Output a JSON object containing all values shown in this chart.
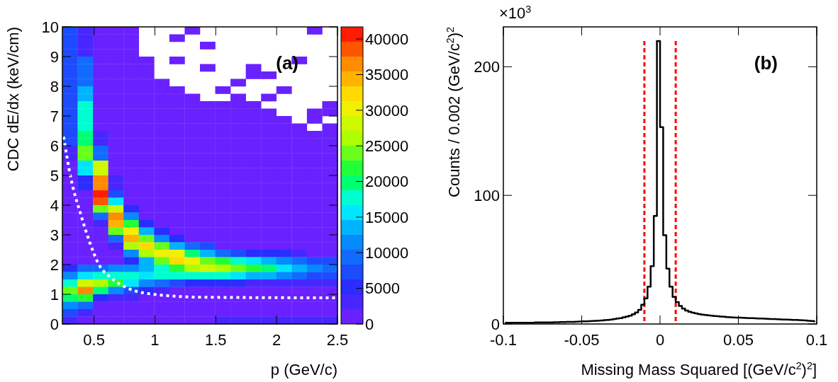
{
  "chart_data": [
    {
      "type": "heatmap",
      "xlabel": "p (GeV/c)",
      "ylabel": "CDC dE/dx (keV/cm)",
      "annotations": [
        "(a)"
      ],
      "xlim": [
        0.24,
        2.5
      ],
      "xticks": [
        0.5,
        1,
        1.5,
        2,
        2.5
      ],
      "ylim": [
        0,
        10
      ],
      "yticks": [
        0,
        1,
        2,
        3,
        4,
        5,
        6,
        7,
        8,
        9,
        10
      ],
      "clim": [
        0,
        41700
      ],
      "cticks": [
        0,
        5000,
        10000,
        15000,
        20000,
        25000,
        30000,
        35000,
        40000
      ],
      "cells": [
        [
          7000,
          4000,
          1000,
          1000,
          1000,
          null,
          null,
          null,
          1000,
          null,
          null,
          null,
          null,
          null,
          null,
          null,
          1000,
          null
        ],
        [
          7000,
          4000,
          1000,
          1000,
          1000,
          null,
          null,
          1000,
          null,
          null,
          null,
          null,
          null,
          null,
          null,
          null,
          null,
          null
        ],
        [
          7000,
          4000,
          1000,
          1000,
          1000,
          null,
          null,
          null,
          null,
          1000,
          null,
          null,
          null,
          null,
          null,
          null,
          null,
          null
        ],
        [
          7000,
          4000,
          1000,
          1000,
          1000,
          null,
          null,
          null,
          null,
          null,
          null,
          null,
          null,
          null,
          null,
          null,
          null,
          null
        ],
        [
          7000,
          9000,
          1000,
          1000,
          1000,
          1000,
          null,
          1000,
          null,
          null,
          null,
          null,
          null,
          null,
          null,
          1000,
          null,
          null
        ],
        [
          7000,
          9000,
          1000,
          1000,
          1000,
          1000,
          null,
          null,
          null,
          1000,
          null,
          null,
          1000,
          null,
          null,
          null,
          null,
          null
        ],
        [
          7000,
          9000,
          1000,
          1000,
          1000,
          1000,
          null,
          null,
          null,
          null,
          null,
          null,
          1000,
          1000,
          null,
          null,
          null,
          null
        ],
        [
          7000,
          9000,
          1000,
          1000,
          1000,
          1000,
          1000,
          null,
          null,
          null,
          null,
          1000,
          null,
          null,
          null,
          null,
          null,
          null
        ],
        [
          7000,
          13000,
          1000,
          1000,
          1000,
          1000,
          1000,
          1000,
          null,
          null,
          1000,
          null,
          null,
          null,
          1000,
          null,
          null,
          null
        ],
        [
          7000,
          13000,
          1000,
          1000,
          1000,
          1000,
          1000,
          1000,
          1000,
          null,
          null,
          1000,
          null,
          1000,
          null,
          null,
          null,
          null
        ],
        [
          7000,
          17000,
          1000,
          1000,
          1000,
          1000,
          1000,
          1000,
          1000,
          1000,
          1000,
          1000,
          1000,
          null,
          null,
          null,
          null,
          1000
        ],
        [
          7000,
          17000,
          1000,
          1000,
          1000,
          1000,
          1000,
          1000,
          1000,
          1000,
          1000,
          1000,
          1000,
          1000,
          null,
          null,
          1000,
          1000
        ],
        [
          7000,
          17000,
          1000,
          1000,
          1000,
          1000,
          1000,
          1000,
          1000,
          1000,
          1000,
          1000,
          1000,
          1000,
          1000,
          null,
          1000,
          null
        ],
        [
          7000,
          17000,
          1000,
          1000,
          1000,
          1000,
          1000,
          1000,
          1000,
          1000,
          1000,
          1000,
          1000,
          1000,
          1000,
          1000,
          null,
          1000
        ],
        [
          7000,
          20000,
          3000,
          1000,
          1000,
          1000,
          1000,
          1000,
          1000,
          1000,
          1000,
          1000,
          1000,
          1000,
          1000,
          1000,
          1000,
          1000
        ],
        [
          7000,
          20000,
          3000,
          1000,
          1000,
          1000,
          1000,
          1000,
          1000,
          1000,
          1000,
          1000,
          1000,
          1000,
          1000,
          1000,
          1000,
          1000
        ],
        [
          4000,
          25000,
          10000,
          1000,
          1000,
          1000,
          1000,
          1000,
          1000,
          1000,
          1000,
          1000,
          1000,
          1000,
          1000,
          1000,
          1000,
          1000
        ],
        [
          4000,
          25000,
          10000,
          1000,
          1000,
          1000,
          1000,
          1000,
          1000,
          1000,
          1000,
          1000,
          1000,
          1000,
          1000,
          1000,
          1000,
          1000
        ],
        [
          1500,
          15000,
          28000,
          1000,
          1000,
          1000,
          1000,
          1000,
          1000,
          1000,
          1000,
          1000,
          1000,
          1000,
          1000,
          1000,
          1000,
          1000
        ],
        [
          1500,
          15000,
          28000,
          1000,
          1000,
          1000,
          1000,
          1000,
          1000,
          1000,
          1000,
          1000,
          1000,
          1000,
          1000,
          1000,
          1000,
          1000
        ],
        [
          1500,
          5000,
          37000,
          3000,
          1000,
          1000,
          1000,
          1000,
          1000,
          1000,
          1000,
          1000,
          1000,
          1000,
          1000,
          1000,
          1000,
          1000
        ],
        [
          1500,
          5000,
          37000,
          3000,
          1000,
          1000,
          1000,
          1000,
          1000,
          1000,
          1000,
          1000,
          1000,
          1000,
          1000,
          1000,
          1000,
          1000
        ],
        [
          1500,
          1000,
          40000,
          8000,
          1000,
          1000,
          1000,
          1000,
          1000,
          1000,
          1000,
          1000,
          1000,
          1000,
          1000,
          1000,
          1000,
          1000
        ],
        [
          1500,
          1000,
          38000,
          15000,
          1000,
          1000,
          1000,
          1000,
          1000,
          1000,
          1000,
          1000,
          1000,
          1000,
          1000,
          1000,
          1000,
          1000
        ],
        [
          1500,
          1000,
          24000,
          28000,
          5000,
          1000,
          1000,
          1000,
          1000,
          1000,
          1000,
          1000,
          1000,
          1000,
          1000,
          1000,
          1000,
          1000
        ],
        [
          1500,
          1000,
          10000,
          36000,
          12000,
          1000,
          1000,
          1000,
          1000,
          1000,
          1000,
          1000,
          1000,
          1000,
          1000,
          1000,
          1000,
          1000
        ],
        [
          1500,
          1000,
          4000,
          34000,
          22000,
          6000,
          1000,
          1000,
          1000,
          1000,
          1000,
          1000,
          1000,
          1000,
          1000,
          1000,
          1000,
          1000
        ],
        [
          1500,
          1000,
          1000,
          24000,
          30000,
          14000,
          5000,
          1000,
          1000,
          1000,
          1000,
          1000,
          1000,
          1000,
          1000,
          1000,
          1000,
          1000
        ],
        [
          1500,
          1000,
          1000,
          10000,
          34000,
          24000,
          11000,
          6000,
          1000,
          1000,
          1000,
          1000,
          1000,
          1000,
          1000,
          1000,
          1000,
          1000
        ],
        [
          1500,
          1000,
          1000,
          4000,
          26000,
          32000,
          24000,
          14000,
          9000,
          7000,
          1000,
          1000,
          1000,
          1000,
          1000,
          1000,
          1000,
          1000
        ],
        [
          1500,
          1000,
          1000,
          1000,
          12000,
          26000,
          31000,
          30000,
          20000,
          14000,
          10000,
          7000,
          6000,
          5000,
          5000,
          4000,
          1000,
          1000
        ],
        [
          1500,
          1000,
          1000,
          1000,
          5000,
          14000,
          24000,
          32000,
          30000,
          24000,
          21000,
          18000,
          15000,
          13000,
          11000,
          9000,
          8000,
          7000
        ],
        [
          6000,
          9000,
          10000,
          11000,
          12000,
          14000,
          18000,
          22000,
          27000,
          29000,
          27000,
          24000,
          22000,
          19000,
          15000,
          13000,
          11000,
          10000
        ],
        [
          12000,
          16000,
          17000,
          18000,
          17000,
          16000,
          17000,
          17000,
          17000,
          18000,
          17000,
          15000,
          14000,
          13000,
          11000,
          10000,
          8000,
          7000
        ],
        [
          18000,
          28000,
          27000,
          22000,
          16000,
          12000,
          9000,
          7000,
          6000,
          5000,
          5000,
          5000,
          4000,
          4000,
          4000,
          3000,
          3000,
          3000
        ],
        [
          25000,
          36000,
          20000,
          12000,
          8000,
          5000,
          3000,
          1000,
          1000,
          1000,
          1000,
          1000,
          1000,
          1000,
          1000,
          1000,
          1000,
          1000
        ],
        [
          20000,
          22000,
          6000,
          4000,
          2500,
          1000,
          1000,
          1000,
          1000,
          1000,
          1000,
          1000,
          1000,
          1000,
          1000,
          1000,
          1000,
          1000
        ],
        [
          12000,
          9000,
          1000,
          1000,
          1000,
          1000,
          1000,
          1000,
          1000,
          1000,
          1000,
          1000,
          1000,
          1000,
          1000,
          1000,
          1000,
          1000
        ],
        [
          7000,
          3000,
          1000,
          1000,
          1000,
          1000,
          1000,
          1000,
          1000,
          1000,
          1000,
          1000,
          1000,
          1000,
          1000,
          1000,
          1000,
          1000
        ],
        [
          3000,
          1500,
          1000,
          1000,
          1000,
          1000,
          1000,
          1000,
          1000,
          1000,
          3000,
          3000,
          3000,
          3000,
          3000,
          3000,
          3000,
          3000
        ]
      ],
      "line_style": "dotted",
      "series": [
        {
          "type": "line",
          "color": "#ffffff",
          "x": [
            0.25,
            0.31,
            0.39,
            0.46,
            0.54,
            0.64,
            0.78,
            0.99,
            1.39,
            2.5
          ],
          "values": [
            6.3,
            4.9,
            3.7,
            2.8,
            2.0,
            1.55,
            1.2,
            1.0,
            0.9,
            0.88
          ]
        }
      ]
    },
    {
      "type": "step",
      "xlabel": "Missing Mass Squared [(GeV/c$^{2}$)$^{2}$]",
      "ylabel": "Counts / 0.002 (GeV/c$^{2}$)$^{2}$",
      "annotations": [
        "(b)",
        "×10$^{3}$"
      ],
      "xlim": [
        -0.1,
        0.1
      ],
      "xticks": [
        -0.1,
        -0.05,
        0,
        0.05,
        0.1
      ],
      "ylim": [
        0,
        231
      ],
      "yticks": [
        0,
        100,
        200
      ],
      "color": "#000000",
      "x": [
        -0.099,
        -0.097,
        -0.095,
        -0.093,
        -0.091,
        -0.089,
        -0.087,
        -0.085,
        -0.083,
        -0.081,
        -0.079,
        -0.077,
        -0.075,
        -0.073,
        -0.071,
        -0.069,
        -0.067,
        -0.065,
        -0.063,
        -0.061,
        -0.059,
        -0.057,
        -0.055,
        -0.053,
        -0.051,
        -0.049,
        -0.047,
        -0.045,
        -0.043,
        -0.041,
        -0.039,
        -0.037,
        -0.035,
        -0.033,
        -0.031,
        -0.029,
        -0.027,
        -0.025,
        -0.023,
        -0.021,
        -0.019,
        -0.017,
        -0.015,
        -0.013,
        -0.011,
        -0.009,
        -0.007,
        -0.005,
        -0.003,
        -0.001,
        0.001,
        0.003,
        0.005,
        0.007,
        0.009,
        0.011,
        0.013,
        0.015,
        0.017,
        0.019,
        0.021,
        0.023,
        0.025,
        0.027,
        0.029,
        0.031,
        0.033,
        0.035,
        0.037,
        0.039,
        0.041,
        0.043,
        0.045,
        0.047,
        0.049,
        0.051,
        0.053,
        0.055,
        0.057,
        0.059,
        0.061,
        0.063,
        0.065,
        0.067,
        0.069,
        0.071,
        0.073,
        0.075,
        0.077,
        0.079,
        0.081,
        0.083,
        0.085,
        0.087,
        0.089,
        0.091,
        0.093,
        0.095,
        0.097,
        0.099
      ],
      "values": [
        1,
        1,
        1,
        1,
        1,
        1,
        1,
        1,
        1,
        1,
        1.2,
        1.2,
        1.2,
        1.2,
        1.3,
        1.3,
        1.4,
        1.4,
        1.5,
        1.5,
        1.6,
        1.6,
        1.7,
        1.8,
        1.9,
        2,
        2.1,
        2.2,
        2.3,
        2.5,
        2.6,
        2.8,
        3,
        3.2,
        3.5,
        3.8,
        4.2,
        4.6,
        5.2,
        5.8,
        6.5,
        7.5,
        9,
        11,
        15,
        20,
        29,
        45,
        84,
        220,
        153,
        69,
        43,
        29,
        21,
        17,
        14,
        12,
        10.5,
        9.5,
        8.8,
        8.2,
        7.7,
        7.3,
        7,
        6.7,
        6.4,
        6.2,
        6,
        5.8,
        5.6,
        5.4,
        5.2,
        5.1,
        5,
        4.9,
        4.8,
        4.7,
        4.6,
        4.5,
        4.4,
        4.3,
        4.2,
        4.1,
        4,
        3.9,
        3.8,
        3.7,
        3.6,
        3.5,
        3.4,
        3.3,
        3.2,
        3.1,
        3,
        2.9,
        2.7,
        2.5,
        2.3,
        2
      ],
      "ref_lines": [
        {
          "axis": "x",
          "value": -0.01,
          "color": "#ff0000",
          "line_style": "dashed"
        },
        {
          "axis": "x",
          "value": 0.01,
          "color": "#ff0000",
          "line_style": "dashed"
        }
      ]
    }
  ]
}
